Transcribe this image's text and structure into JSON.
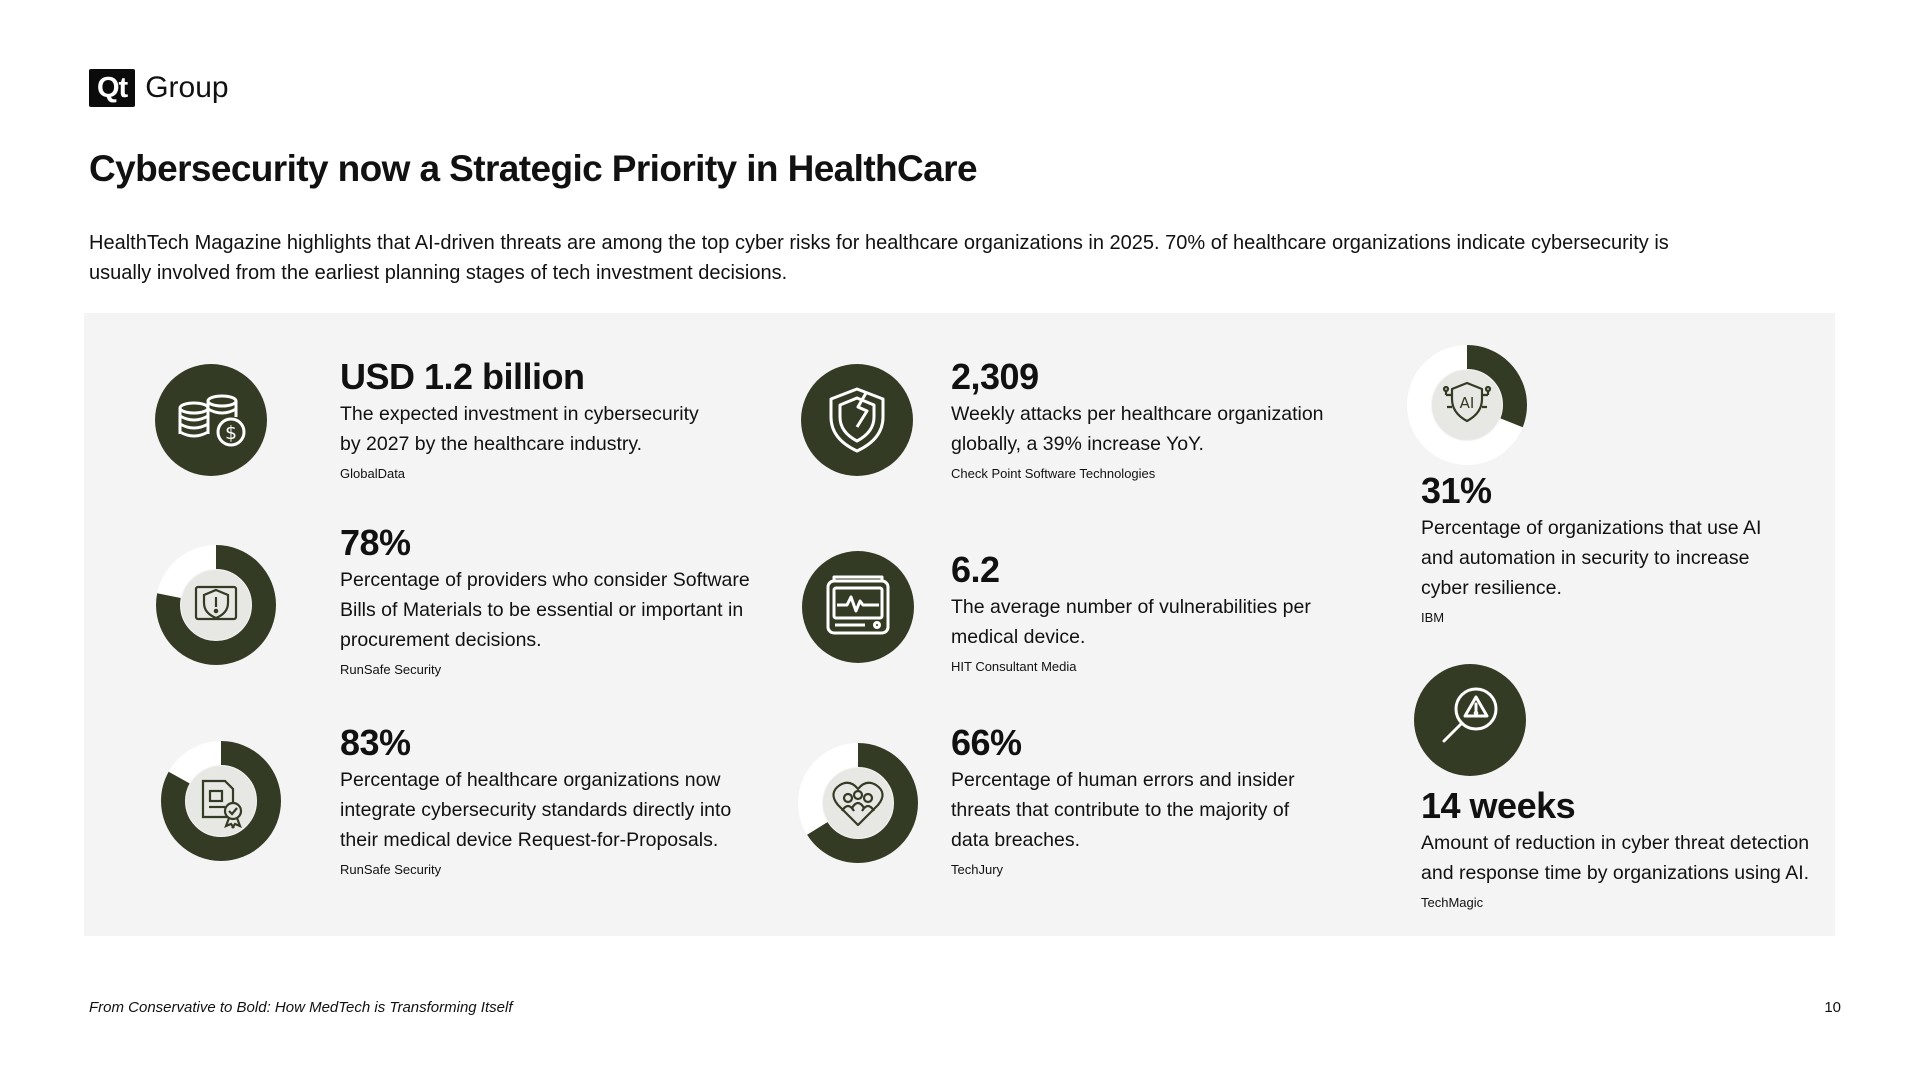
{
  "brand": {
    "logo_mark": "Qt",
    "logo_text": "Group"
  },
  "title": "Cybersecurity now a Strategic Priority in HealthCare",
  "intro": "HealthTech Magazine highlights that AI-driven threats are among the top cyber risks for healthcare organizations in 2025. 70% of healthcare organizations indicate cybersecurity is usually involved from the earliest planning stages of tech investment decisions.",
  "colors": {
    "accent": "#343b24",
    "panel": "#f4f4f4",
    "ring_track": "#ffffff",
    "icon_bg": "#e7e7e4"
  },
  "stats": [
    {
      "value": "USD 1.2 billion",
      "desc": "The  expected investment in cybersecurity by 2027 by the healthcare industry.",
      "source": "GlobalData",
      "icon": "coins-dollar-icon"
    },
    {
      "value": "78%",
      "desc": "Percentage of providers who consider Software Bills of Materials to be essential or important in procurement decisions.",
      "source": "RunSafe Security",
      "icon": "shield-warning-monitor-icon",
      "percent": 78
    },
    {
      "value": "83%",
      "desc": "Percentage of healthcare organizations now integrate cybersecurity standards directly into their medical device Request-for-Proposals.",
      "source": "RunSafe Security",
      "icon": "certified-document-icon",
      "percent": 83
    },
    {
      "value": "2,309",
      "desc": "Weekly attacks per healthcare organization globally, a 39% increase YoY.",
      "source": "Check Point Software Technologies",
      "icon": "cracked-shield-icon"
    },
    {
      "value": "6.2",
      "desc": "The average number of vulnerabilities per medical device.",
      "source": "HIT Consultant Media",
      "icon": "heart-monitor-icon"
    },
    {
      "value": "66%",
      "desc": "Percentage of human errors and insider threats that contribute to the majority of data breaches.",
      "source": "TechJury",
      "icon": "people-heart-icon",
      "percent": 66
    },
    {
      "value": "31%",
      "desc": "Percentage of organizations that use AI and automation in security to increase cyber resilience.",
      "source": "IBM",
      "icon": "ai-shield-icon",
      "percent": 31
    },
    {
      "value": "14 weeks",
      "desc": "Amount of reduction in cyber threat detection and response time by organizations using AI.",
      "source": "TechMagic",
      "icon": "magnifier-warning-icon"
    }
  ],
  "footer": {
    "title": "From Conservative to Bold: How MedTech is Transforming Itself",
    "page_number": "10"
  }
}
